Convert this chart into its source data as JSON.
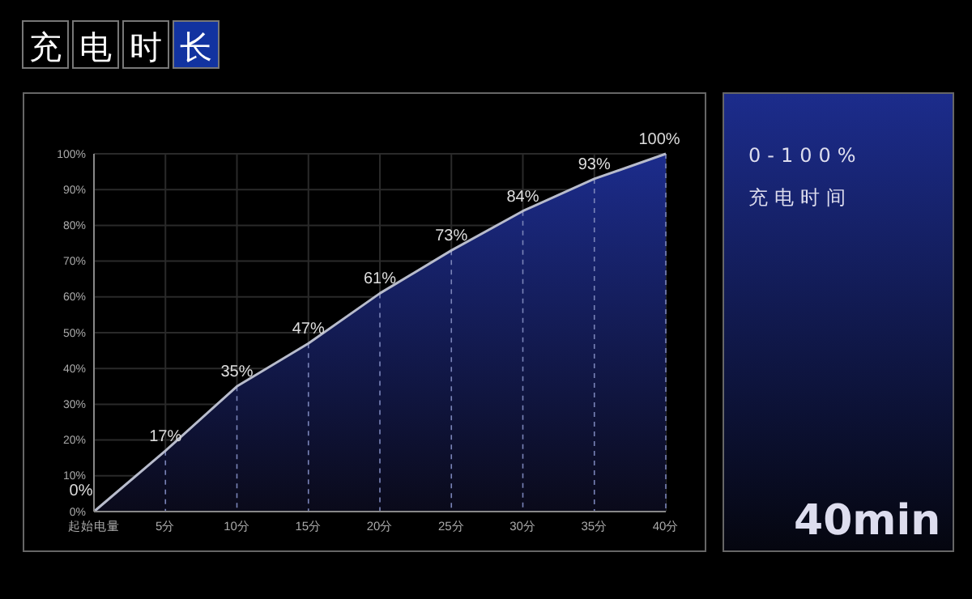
{
  "chart_data": {
    "type": "area",
    "title": "充电时长",
    "categories": [
      "起始电量",
      "5分",
      "10分",
      "15分",
      "20分",
      "25分",
      "30分",
      "35分",
      "40分"
    ],
    "values": [
      0,
      17,
      35,
      47,
      61,
      73,
      84,
      93,
      100
    ],
    "value_labels": [
      "0%",
      "17%",
      "35%",
      "47%",
      "61%",
      "73%",
      "84%",
      "93%",
      "100%"
    ],
    "color": "#1c2c8c",
    "ylim": [
      0,
      100
    ],
    "yticks": [
      {
        "value": 0,
        "label": "0%"
      },
      {
        "value": 10,
        "label": "10%"
      },
      {
        "value": 20,
        "label": "20%"
      },
      {
        "value": 30,
        "label": "30%"
      },
      {
        "value": 40,
        "label": "40%"
      },
      {
        "value": 50,
        "label": "50%"
      },
      {
        "value": 60,
        "label": "60%"
      },
      {
        "value": 70,
        "label": "70%"
      },
      {
        "value": 80,
        "label": "80%"
      },
      {
        "value": 90,
        "label": "90%"
      },
      {
        "value": 100,
        "label": "100%"
      }
    ],
    "grid": true,
    "annotations": [
      "0-100%",
      "充电时间",
      "40min"
    ]
  }
}
